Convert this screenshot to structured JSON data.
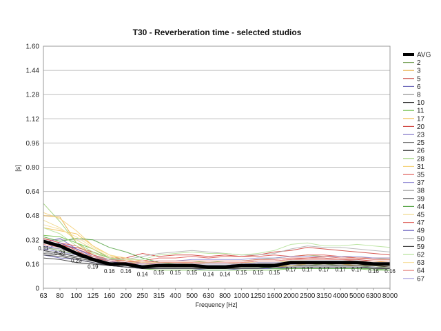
{
  "chart_data": {
    "type": "line",
    "title": "T30 - Reverberation time - selected studios",
    "xlabel": "Frequency [Hz]",
    "ylabel": "[s]",
    "categories": [
      "63",
      "80",
      "100",
      "125",
      "160",
      "200",
      "250",
      "315",
      "400",
      "500",
      "630",
      "800",
      "1000",
      "1250",
      "1600",
      "2000",
      "2500",
      "3150",
      "4000",
      "5000",
      "6300",
      "8000"
    ],
    "y_ticks": [
      "0",
      "0.16",
      "0.32",
      "0.48",
      "0.64",
      "0.80",
      "0.96",
      "1.12",
      "1.28",
      "1.44",
      "1.60"
    ],
    "ylim": [
      0,
      1.6
    ],
    "grid": true,
    "legend_position": "right",
    "avg": {
      "name": "AVG",
      "values": [
        0.31,
        0.28,
        0.23,
        0.19,
        0.16,
        0.16,
        0.14,
        0.15,
        0.15,
        0.15,
        0.14,
        0.14,
        0.15,
        0.15,
        0.15,
        0.17,
        0.17,
        0.17,
        0.17,
        0.17,
        0.16,
        0.16
      ],
      "labels": [
        "0.31",
        "0.28",
        "0.23",
        "0.19",
        "0.16",
        "0.16",
        "0.14",
        "0.15",
        "0.15",
        "0.15",
        "0.14",
        "0.14",
        "0.15",
        "0.15",
        "0.15",
        "0.17",
        "0.17",
        "0.17",
        "0.17",
        "0.17",
        "0.16",
        "0.16"
      ]
    },
    "series": [
      {
        "name": "2",
        "color": "#7aa35c",
        "values": [
          0.27,
          0.25,
          0.22,
          0.2,
          0.17,
          0.15,
          0.14,
          0.15,
          0.14,
          0.15,
          0.14,
          0.14,
          0.15,
          0.15,
          0.14,
          0.15,
          0.15,
          0.16,
          0.15,
          0.15,
          0.14,
          0.14
        ]
      },
      {
        "name": "3",
        "color": "#e8b04a",
        "values": [
          0.48,
          0.47,
          0.3,
          0.22,
          0.18,
          0.16,
          0.14,
          0.14,
          0.14,
          0.14,
          0.13,
          0.13,
          0.14,
          0.14,
          0.14,
          0.15,
          0.16,
          0.16,
          0.16,
          0.15,
          0.15,
          0.14
        ]
      },
      {
        "name": "5",
        "color": "#c8403a",
        "values": [
          0.33,
          0.3,
          0.25,
          0.2,
          0.18,
          0.17,
          0.16,
          0.17,
          0.17,
          0.17,
          0.16,
          0.16,
          0.17,
          0.18,
          0.18,
          0.19,
          0.2,
          0.2,
          0.19,
          0.19,
          0.18,
          0.18
        ]
      },
      {
        "name": "6",
        "color": "#6b66b8",
        "values": [
          0.22,
          0.2,
          0.19,
          0.17,
          0.15,
          0.14,
          0.13,
          0.13,
          0.13,
          0.13,
          0.12,
          0.12,
          0.13,
          0.13,
          0.13,
          0.14,
          0.14,
          0.14,
          0.14,
          0.14,
          0.14,
          0.13
        ]
      },
      {
        "name": "8",
        "color": "#8a8a8a",
        "values": [
          0.24,
          0.22,
          0.2,
          0.18,
          0.16,
          0.15,
          0.14,
          0.14,
          0.15,
          0.15,
          0.15,
          0.15,
          0.15,
          0.16,
          0.16,
          0.17,
          0.17,
          0.17,
          0.17,
          0.17,
          0.16,
          0.16
        ]
      },
      {
        "name": "10",
        "color": "#333333",
        "values": [
          0.2,
          0.19,
          0.17,
          0.16,
          0.15,
          0.14,
          0.14,
          0.14,
          0.14,
          0.14,
          0.14,
          0.14,
          0.14,
          0.15,
          0.15,
          0.15,
          0.15,
          0.15,
          0.15,
          0.15,
          0.15,
          0.14
        ]
      },
      {
        "name": "11",
        "color": "#6fbf4a",
        "values": [
          0.35,
          0.34,
          0.3,
          0.26,
          0.2,
          0.16,
          0.13,
          0.12,
          0.12,
          0.12,
          0.12,
          0.12,
          0.12,
          0.12,
          0.12,
          0.13,
          0.13,
          0.13,
          0.13,
          0.13,
          0.12,
          0.12
        ]
      },
      {
        "name": "17",
        "color": "#f2c15a",
        "values": [
          0.4,
          0.38,
          0.36,
          0.28,
          0.22,
          0.18,
          0.16,
          0.16,
          0.15,
          0.15,
          0.15,
          0.15,
          0.16,
          0.16,
          0.16,
          0.17,
          0.17,
          0.18,
          0.18,
          0.18,
          0.18,
          0.17
        ]
      },
      {
        "name": "20",
        "color": "#d0453e",
        "values": [
          0.3,
          0.28,
          0.27,
          0.24,
          0.2,
          0.2,
          0.23,
          0.21,
          0.22,
          0.22,
          0.21,
          0.22,
          0.21,
          0.22,
          0.24,
          0.25,
          0.27,
          0.26,
          0.25,
          0.24,
          0.23,
          0.22
        ]
      },
      {
        "name": "23",
        "color": "#7b6fc4",
        "values": [
          0.3,
          0.33,
          0.26,
          0.22,
          0.18,
          0.16,
          0.15,
          0.15,
          0.15,
          0.15,
          0.14,
          0.14,
          0.15,
          0.15,
          0.15,
          0.16,
          0.16,
          0.16,
          0.16,
          0.16,
          0.16,
          0.15
        ]
      },
      {
        "name": "25",
        "color": "#777777",
        "values": [
          0.28,
          0.26,
          0.23,
          0.21,
          0.18,
          0.16,
          0.15,
          0.15,
          0.16,
          0.16,
          0.16,
          0.16,
          0.16,
          0.17,
          0.17,
          0.18,
          0.18,
          0.18,
          0.18,
          0.18,
          0.17,
          0.17
        ]
      },
      {
        "name": "26",
        "color": "#222222",
        "values": [
          0.25,
          0.23,
          0.21,
          0.19,
          0.17,
          0.16,
          0.15,
          0.15,
          0.15,
          0.15,
          0.15,
          0.15,
          0.15,
          0.16,
          0.16,
          0.16,
          0.17,
          0.17,
          0.17,
          0.17,
          0.16,
          0.16
        ]
      },
      {
        "name": "28",
        "color": "#9fd07a",
        "values": [
          0.56,
          0.44,
          0.3,
          0.24,
          0.2,
          0.18,
          0.17,
          0.18,
          0.18,
          0.18,
          0.17,
          0.18,
          0.18,
          0.19,
          0.2,
          0.21,
          0.22,
          0.21,
          0.21,
          0.2,
          0.2,
          0.19
        ]
      },
      {
        "name": "31",
        "color": "#f5d27a",
        "values": [
          0.5,
          0.46,
          0.38,
          0.28,
          0.22,
          0.2,
          0.18,
          0.17,
          0.17,
          0.17,
          0.16,
          0.16,
          0.17,
          0.17,
          0.17,
          0.18,
          0.18,
          0.18,
          0.18,
          0.17,
          0.17,
          0.16
        ]
      },
      {
        "name": "35",
        "color": "#e05a55",
        "values": [
          0.33,
          0.3,
          0.28,
          0.22,
          0.19,
          0.18,
          0.18,
          0.2,
          0.2,
          0.21,
          0.2,
          0.21,
          0.21,
          0.21,
          0.22,
          0.21,
          0.22,
          0.22,
          0.21,
          0.2,
          0.2,
          0.2
        ]
      },
      {
        "name": "37",
        "color": "#9690d6",
        "values": [
          0.28,
          0.26,
          0.24,
          0.21,
          0.18,
          0.17,
          0.17,
          0.18,
          0.18,
          0.19,
          0.19,
          0.19,
          0.19,
          0.2,
          0.2,
          0.21,
          0.21,
          0.21,
          0.21,
          0.21,
          0.2,
          0.2
        ]
      },
      {
        "name": "38",
        "color": "#a0a0a0",
        "values": [
          0.26,
          0.24,
          0.22,
          0.19,
          0.17,
          0.16,
          0.15,
          0.15,
          0.16,
          0.16,
          0.16,
          0.16,
          0.16,
          0.17,
          0.17,
          0.17,
          0.18,
          0.18,
          0.18,
          0.18,
          0.17,
          0.17
        ]
      },
      {
        "name": "39",
        "color": "#555555",
        "values": [
          0.23,
          0.22,
          0.2,
          0.18,
          0.16,
          0.15,
          0.14,
          0.14,
          0.14,
          0.14,
          0.13,
          0.13,
          0.14,
          0.14,
          0.14,
          0.14,
          0.14,
          0.14,
          0.14,
          0.14,
          0.14,
          0.13
        ]
      },
      {
        "name": "44",
        "color": "#5aa64a",
        "values": [
          0.34,
          0.31,
          0.33,
          0.32,
          0.27,
          0.24,
          0.2,
          0.17,
          0.16,
          0.15,
          0.14,
          0.14,
          0.14,
          0.14,
          0.13,
          0.13,
          0.13,
          0.13,
          0.13,
          0.13,
          0.13,
          0.12
        ]
      },
      {
        "name": "45",
        "color": "#f0d88a",
        "values": [
          0.45,
          0.4,
          0.32,
          0.26,
          0.21,
          0.18,
          0.16,
          0.15,
          0.15,
          0.15,
          0.14,
          0.14,
          0.14,
          0.15,
          0.15,
          0.15,
          0.16,
          0.16,
          0.16,
          0.16,
          0.15,
          0.15
        ]
      },
      {
        "name": "47",
        "color": "#e06b66",
        "values": [
          0.3,
          0.29,
          0.26,
          0.22,
          0.19,
          0.18,
          0.17,
          0.18,
          0.18,
          0.18,
          0.18,
          0.18,
          0.18,
          0.19,
          0.19,
          0.2,
          0.2,
          0.21,
          0.2,
          0.2,
          0.19,
          0.19
        ]
      },
      {
        "name": "49",
        "color": "#6a62c0",
        "values": [
          0.25,
          0.3,
          0.26,
          0.21,
          0.18,
          0.16,
          0.15,
          0.15,
          0.15,
          0.15,
          0.15,
          0.15,
          0.16,
          0.16,
          0.16,
          0.16,
          0.17,
          0.17,
          0.17,
          0.17,
          0.16,
          0.16
        ]
      },
      {
        "name": "50",
        "color": "#b3b3b3",
        "values": [
          0.27,
          0.26,
          0.24,
          0.21,
          0.19,
          0.19,
          0.21,
          0.23,
          0.24,
          0.25,
          0.24,
          0.23,
          0.22,
          0.22,
          0.23,
          0.26,
          0.28,
          0.27,
          0.27,
          0.26,
          0.25,
          0.24
        ]
      },
      {
        "name": "59",
        "color": "#444444",
        "values": [
          0.22,
          0.21,
          0.19,
          0.17,
          0.15,
          0.14,
          0.13,
          0.13,
          0.13,
          0.13,
          0.13,
          0.13,
          0.13,
          0.13,
          0.14,
          0.14,
          0.14,
          0.14,
          0.14,
          0.14,
          0.13,
          0.13
        ]
      },
      {
        "name": "62",
        "color": "#b6e29a",
        "values": [
          0.4,
          0.36,
          0.28,
          0.23,
          0.2,
          0.19,
          0.19,
          0.22,
          0.23,
          0.24,
          0.23,
          0.23,
          0.22,
          0.23,
          0.25,
          0.29,
          0.3,
          0.28,
          0.28,
          0.29,
          0.28,
          0.27
        ]
      },
      {
        "name": "63",
        "color": "#f7e0a0",
        "values": [
          0.42,
          0.39,
          0.34,
          0.27,
          0.22,
          0.19,
          0.17,
          0.17,
          0.17,
          0.16,
          0.16,
          0.16,
          0.16,
          0.17,
          0.17,
          0.17,
          0.18,
          0.18,
          0.18,
          0.17,
          0.17,
          0.17
        ]
      },
      {
        "name": "64",
        "color": "#e88a85",
        "values": [
          0.29,
          0.27,
          0.24,
          0.21,
          0.18,
          0.17,
          0.16,
          0.17,
          0.17,
          0.17,
          0.17,
          0.17,
          0.17,
          0.18,
          0.18,
          0.19,
          0.19,
          0.19,
          0.19,
          0.18,
          0.18,
          0.18
        ]
      },
      {
        "name": "67",
        "color": "#a9a2e0",
        "values": [
          0.26,
          0.24,
          0.22,
          0.2,
          0.17,
          0.16,
          0.16,
          0.16,
          0.16,
          0.16,
          0.16,
          0.16,
          0.16,
          0.17,
          0.17,
          0.17,
          0.18,
          0.18,
          0.18,
          0.17,
          0.17,
          0.17
        ]
      }
    ]
  }
}
